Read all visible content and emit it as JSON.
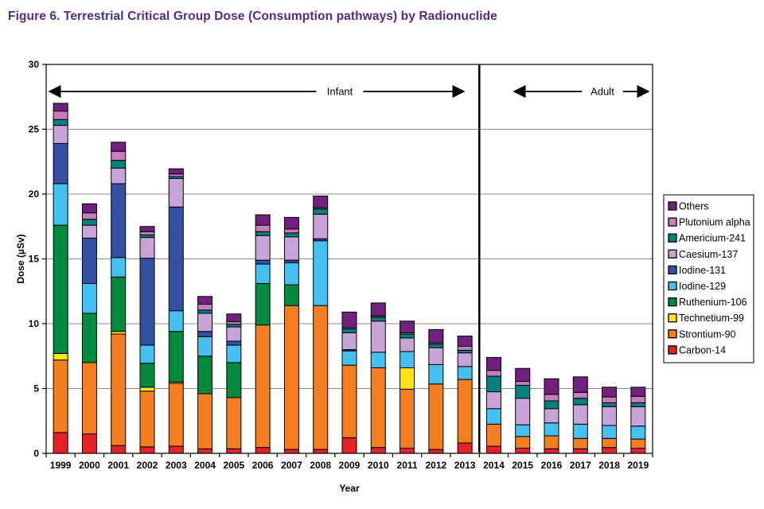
{
  "figure_title": "Figure 6.  Terrestrial Critical Group Dose (Consumption pathways) by Radionuclide",
  "colors": {
    "title": "#562985",
    "gridline": "#8C8C8C",
    "axis": "#000000",
    "plot_background": "#FFFFFF",
    "legend_border": "#000000"
  },
  "chart_data": {
    "type": "bar",
    "stacked": true,
    "title": "",
    "xlabel": "Year",
    "ylabel": "Dose (µSv)",
    "ylim": [
      0,
      30
    ],
    "ytick_step": 5,
    "grid": true,
    "legend_position": "right",
    "legend_order": "top_is_last_series",
    "categories": [
      "1999",
      "2000",
      "2001",
      "2002",
      "2003",
      "2004",
      "2005",
      "2006",
      "2007",
      "2008",
      "2009",
      "2010",
      "2011",
      "2012",
      "2013",
      "2014",
      "2015",
      "2016",
      "2017",
      "2018",
      "2019"
    ],
    "annotations": [
      {
        "label": "Infant",
        "span": [
          "1999",
          "2013"
        ]
      },
      {
        "label": "Adult",
        "span": [
          "2014",
          "2019"
        ]
      }
    ],
    "divider_between": [
      "2013",
      "2014"
    ],
    "series": [
      {
        "name": "Carbon-14",
        "color": "#E62227",
        "values": [
          1.6,
          1.5,
          0.6,
          0.5,
          0.55,
          0.35,
          0.35,
          0.45,
          0.3,
          0.3,
          1.2,
          0.45,
          0.4,
          0.3,
          0.8,
          0.55,
          0.4,
          0.35,
          0.35,
          0.45,
          0.4
        ]
      },
      {
        "name": "Strontium-90",
        "color": "#F57E20",
        "values": [
          5.6,
          5.5,
          8.6,
          4.3,
          4.85,
          4.25,
          3.95,
          9.45,
          11.1,
          11.1,
          5.6,
          6.15,
          4.55,
          5.05,
          4.9,
          1.7,
          0.9,
          1.0,
          0.8,
          0.7,
          0.7
        ]
      },
      {
        "name": "Technetium-99",
        "color": "#FFE70D",
        "values": [
          0.5,
          0,
          0.2,
          0.3,
          0.1,
          0,
          0,
          0,
          0,
          0,
          0,
          0,
          1.65,
          0,
          0,
          0,
          0,
          0,
          0,
          0,
          0
        ]
      },
      {
        "name": "Ruthenium-106",
        "color": "#008A3E",
        "values": [
          9.9,
          3.8,
          4.2,
          1.85,
          3.9,
          2.9,
          2.7,
          3.2,
          1.6,
          0,
          0,
          0,
          0,
          0,
          0,
          0,
          0,
          0,
          0,
          0,
          0
        ]
      },
      {
        "name": "Iodine-129",
        "color": "#44C1F0",
        "values": [
          3.2,
          2.3,
          1.5,
          1.4,
          1.6,
          1.5,
          1.35,
          1.5,
          1.7,
          5.0,
          1.1,
          1.2,
          1.25,
          1.5,
          1.0,
          1.2,
          0.9,
          1.0,
          1.1,
          1.0,
          1.0
        ]
      },
      {
        "name": "Iodine-131",
        "color": "#3351A3",
        "values": [
          3.1,
          3.5,
          5.7,
          6.7,
          8.0,
          0.4,
          0.3,
          0.3,
          0.2,
          0.15,
          0.1,
          0,
          0,
          0,
          0,
          0,
          0,
          0,
          0,
          0,
          0
        ]
      },
      {
        "name": "Caesium-137",
        "color": "#C6A4D9",
        "values": [
          1.4,
          1.0,
          1.2,
          1.6,
          2.2,
          1.4,
          1.1,
          1.9,
          1.8,
          1.9,
          1.3,
          2.4,
          1.05,
          1.3,
          1.05,
          1.3,
          2.05,
          1.1,
          1.5,
          1.45,
          1.5
        ]
      },
      {
        "name": "Americium-241",
        "color": "#00827B",
        "values": [
          0.45,
          0.45,
          0.6,
          0.2,
          0.15,
          0.25,
          0.2,
          0.3,
          0.3,
          0.4,
          0.3,
          0.3,
          0.3,
          0.25,
          0.2,
          1.2,
          1.0,
          0.6,
          0.5,
          0.3,
          0.3
        ]
      },
      {
        "name": "Plutonium alpha",
        "color": "#C87CC1",
        "values": [
          0.65,
          0.5,
          0.7,
          0.25,
          0.2,
          0.45,
          0.2,
          0.5,
          0.3,
          0.1,
          0.1,
          0.1,
          0.1,
          0.1,
          0.3,
          0.45,
          0.3,
          0.5,
          0.45,
          0.45,
          0.5
        ]
      },
      {
        "name": "Others",
        "color": "#70207D",
        "values": [
          0.6,
          0.7,
          0.7,
          0.4,
          0.4,
          0.6,
          0.6,
          0.8,
          0.9,
          0.9,
          1.2,
          1.0,
          0.9,
          1.05,
          0.8,
          1.0,
          1.0,
          1.2,
          1.2,
          0.75,
          0.7
        ]
      }
    ]
  }
}
